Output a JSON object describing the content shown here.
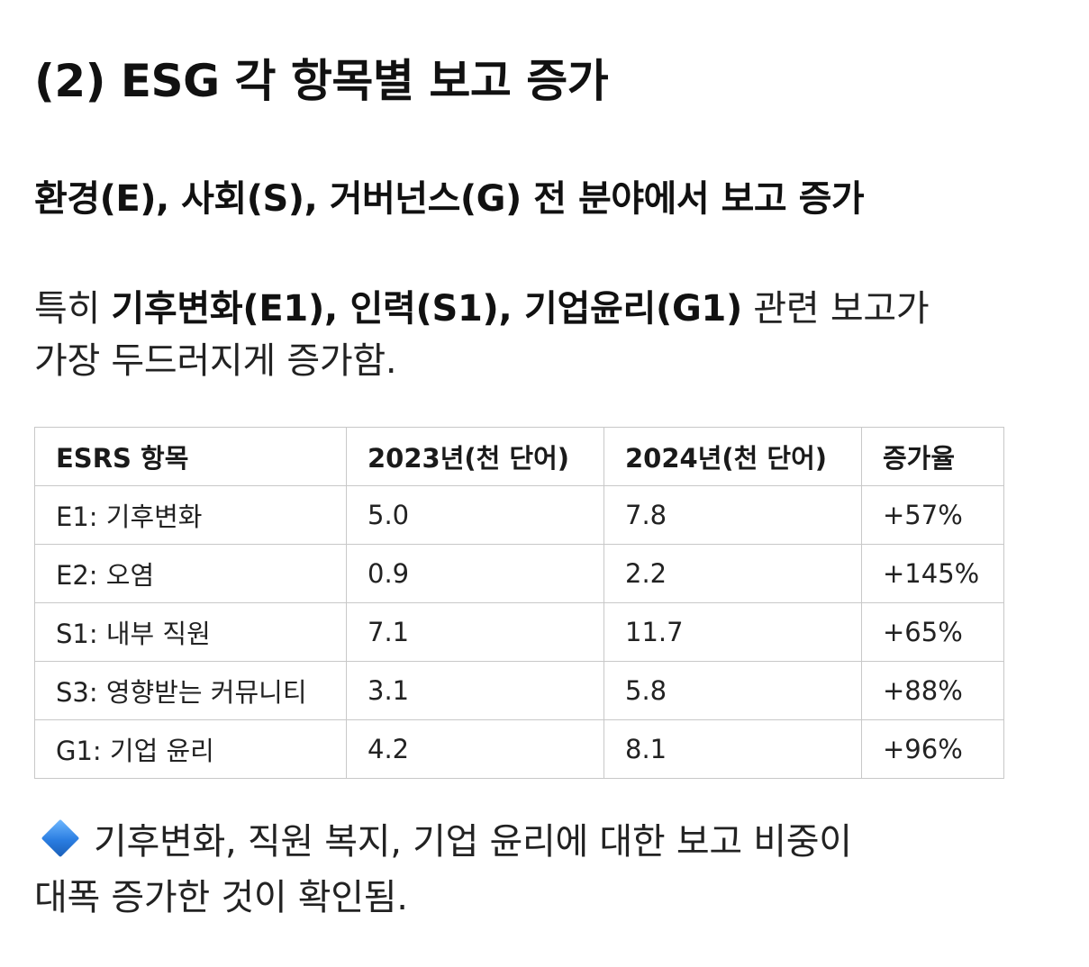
{
  "title": "(2) ESG 각 항목별 보고 증가",
  "subtitle": "환경(E), 사회(S), 거버넌스(G) 전 분야에서 보고 증가",
  "paragraph": {
    "prefix": "특히 ",
    "highlight": "기후변화(E1), 인력(S1), 기업윤리(G1)",
    "suffix_line1": " 관련 보고가",
    "line2": "가장 두드러지게 증가함."
  },
  "table": {
    "headers": [
      "ESRS 항목",
      "2023년(천 단어)",
      "2024년(천 단어)",
      "증가율"
    ],
    "rows": [
      [
        "E1: 기후변화",
        "5.0",
        "7.8",
        "+57%"
      ],
      [
        "E2: 오염",
        "0.9",
        "2.2",
        "+145%"
      ],
      [
        "S1: 내부 직원",
        "7.1",
        "11.7",
        "+65%"
      ],
      [
        "S3: 영향받는 커뮤니티",
        "3.1",
        "5.8",
        "+88%"
      ],
      [
        "G1: 기업 윤리",
        "4.2",
        "8.1",
        "+96%"
      ]
    ]
  },
  "note": {
    "icon": "blue-diamond-icon",
    "line1": "기후변화, 직원 복지, 기업 윤리에 대한 보고 비중이",
    "line2": "대폭 증가한 것이 확인됨."
  }
}
